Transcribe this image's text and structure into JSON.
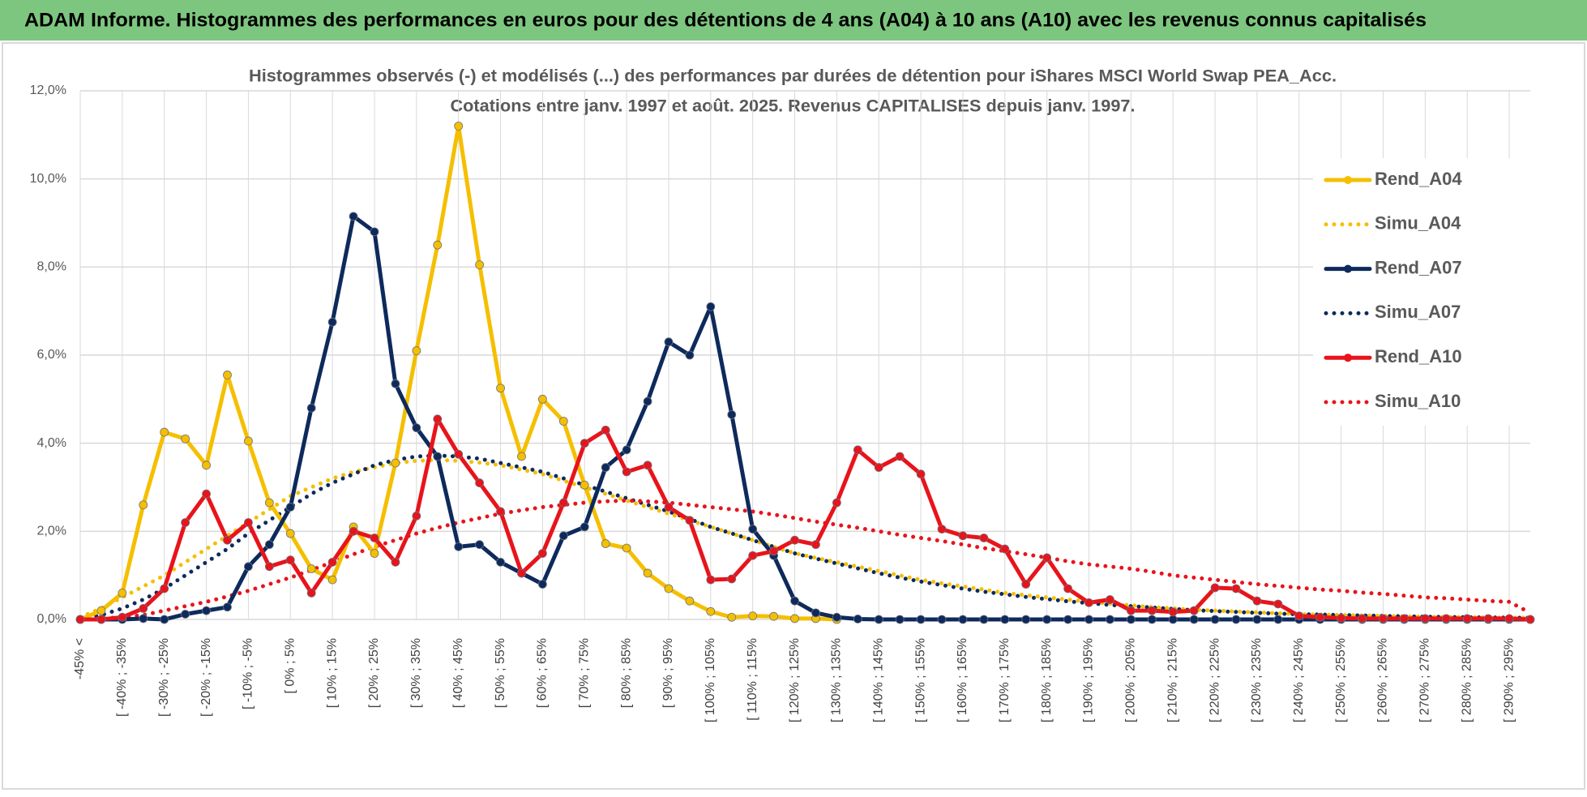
{
  "page_title": "ADAM Informe. Histogrammes des performances en euros pour des détentions de 4 ans (A04) à 10 ans (A10) avec les revenus connus capitalisés",
  "chart_data": {
    "type": "line",
    "title": "Histogrammes observés (-) et modélisés (...) des performances par durées de détention pour iShares MSCI World Swap PEA_Acc.",
    "subtitle": "Cotations entre janv. 1997 et août. 2025. Revenus CAPITALISES depuis janv. 1997.",
    "categories": [
      "-45% <",
      null,
      "[ -40% ; -35%",
      null,
      "[ -30% ; -25%",
      null,
      "[ -20% ; -15%",
      null,
      "[ -10% ; -5%",
      null,
      "[ 0% ; 5%",
      null,
      "[ 10% ; 15%",
      null,
      "[ 20% ; 25%",
      null,
      "[ 30% ; 35%",
      null,
      "[ 40% ; 45%",
      null,
      "[ 50% ; 55%",
      null,
      "[ 60% ; 65%",
      null,
      "[ 70% ; 75%",
      null,
      "[ 80% ; 85%",
      null,
      "[ 90% ; 95%",
      null,
      "[ 100% ; 105%",
      null,
      "[ 110% ; 115%",
      null,
      "[ 120% ; 125%",
      null,
      "[ 130% ; 135%",
      null,
      "[ 140% ; 145%",
      null,
      "[ 150% ; 155%",
      null,
      "[ 160% ; 165%",
      null,
      "[ 170% ; 175%",
      null,
      "[ 180% ; 185%",
      null,
      "[ 190% ; 195%",
      null,
      "[ 200% ; 205%",
      null,
      "[ 210% ; 215%",
      null,
      "[ 220% ; 225%",
      null,
      "[ 230% ; 235%",
      null,
      "[ 240% ; 245%",
      null,
      "[ 250% ; 255%",
      null,
      "[ 260% ; 265%",
      null,
      "[ 270% ; 275%",
      null,
      "[ 280% ; 285%",
      null,
      "[ 290% ; 295%",
      null
    ],
    "series": [
      {
        "name": "Rend_A04",
        "color": "#f5bf00",
        "style": "solid",
        "markers": true,
        "values": [
          0,
          0.2,
          0.6,
          2.6,
          4.25,
          4.1,
          3.5,
          5.55,
          4.05,
          2.65,
          1.95,
          1.15,
          0.9,
          2.1,
          1.5,
          3.55,
          6.1,
          8.5,
          11.2,
          8.05,
          5.25,
          3.7,
          5.0,
          4.5,
          3.05,
          1.72,
          1.62,
          1.05,
          0.7,
          0.42,
          0.18,
          0.05,
          0.08,
          0.07,
          0.02,
          0.02,
          0,
          null,
          null,
          null,
          null,
          null,
          null,
          null,
          null,
          null,
          null,
          null,
          null,
          null,
          null,
          null,
          null,
          null,
          null,
          null,
          null,
          null,
          null,
          null,
          null,
          null,
          null,
          null,
          null,
          null,
          null,
          null,
          null,
          null
        ]
      },
      {
        "name": "Simu_A04",
        "color": "#f5bf00",
        "style": "dotted",
        "markers": false,
        "values": [
          0.05,
          0.25,
          0.5,
          0.75,
          1.0,
          1.3,
          1.6,
          1.9,
          2.2,
          2.5,
          2.8,
          3.0,
          3.2,
          3.35,
          3.45,
          3.55,
          3.6,
          3.62,
          3.6,
          3.56,
          3.5,
          3.4,
          3.3,
          3.15,
          3.0,
          2.85,
          2.7,
          2.55,
          2.4,
          2.25,
          2.1,
          1.95,
          1.8,
          1.65,
          1.5,
          1.4,
          1.3,
          1.2,
          1.1,
          1.0,
          0.9,
          0.82,
          0.75,
          0.68,
          0.6,
          0.55,
          0.5,
          0.45,
          0.4,
          0.36,
          0.32,
          0.28,
          0.25,
          0.22,
          0.2,
          0.18,
          0.16,
          0.14,
          0.12,
          0.11,
          0.1,
          0.09,
          0.08,
          0.07,
          0.06,
          0.055,
          0.05,
          0.045,
          0.04,
          0.035
        ]
      },
      {
        "name": "Rend_A07",
        "color": "#0e2a5c",
        "style": "solid",
        "markers": true,
        "values": [
          0,
          0,
          0,
          0.02,
          0,
          0.12,
          0.2,
          0.28,
          1.2,
          1.7,
          2.55,
          4.8,
          6.75,
          9.15,
          8.8,
          5.35,
          4.35,
          3.7,
          1.65,
          1.7,
          1.3,
          1.05,
          0.8,
          1.9,
          2.1,
          3.45,
          3.85,
          4.95,
          6.3,
          6.0,
          7.1,
          4.65,
          2.05,
          1.45,
          0.42,
          0.15,
          0.05,
          0.01,
          0,
          0,
          0,
          0,
          0,
          0,
          0,
          0,
          0,
          0,
          0,
          0,
          0,
          0,
          0,
          0,
          0,
          0,
          0,
          0,
          0,
          0,
          0,
          0,
          0,
          0,
          0,
          0,
          0,
          0,
          0,
          0
        ]
      },
      {
        "name": "Simu_A07",
        "color": "#0e2a5c",
        "style": "dotted",
        "markers": false,
        "values": [
          0.02,
          0.1,
          0.25,
          0.45,
          0.7,
          1.0,
          1.3,
          1.6,
          1.95,
          2.25,
          2.55,
          2.85,
          3.1,
          3.3,
          3.5,
          3.62,
          3.7,
          3.72,
          3.7,
          3.65,
          3.55,
          3.45,
          3.35,
          3.2,
          3.05,
          2.9,
          2.75,
          2.6,
          2.45,
          2.28,
          2.1,
          1.95,
          1.8,
          1.65,
          1.5,
          1.38,
          1.27,
          1.16,
          1.05,
          0.95,
          0.86,
          0.78,
          0.7,
          0.63,
          0.57,
          0.51,
          0.46,
          0.41,
          0.37,
          0.33,
          0.3,
          0.27,
          0.24,
          0.21,
          0.19,
          0.17,
          0.15,
          0.13,
          0.12,
          0.11,
          0.1,
          0.09,
          0.08,
          0.07,
          0.06,
          0.055,
          0.05,
          0.045,
          0.04,
          0.035
        ]
      },
      {
        "name": "Rend_A10",
        "color": "#e8141b",
        "style": "solid",
        "markers": true,
        "values": [
          0,
          0,
          0.05,
          0.25,
          0.7,
          2.2,
          2.85,
          1.8,
          2.2,
          1.2,
          1.35,
          0.6,
          1.3,
          2.0,
          1.85,
          1.3,
          2.35,
          4.55,
          3.75,
          3.1,
          2.45,
          1.05,
          1.5,
          2.65,
          4.0,
          4.3,
          3.35,
          3.5,
          2.55,
          2.25,
          0.9,
          0.92,
          1.45,
          1.55,
          1.8,
          1.7,
          2.65,
          3.85,
          3.45,
          3.7,
          3.3,
          2.05,
          1.9,
          1.85,
          1.6,
          0.8,
          1.4,
          0.7,
          0.38,
          0.45,
          0.2,
          0.2,
          0.17,
          0.2,
          0.72,
          0.7,
          0.42,
          0.35,
          0.08,
          0.05,
          0.03,
          0.02,
          0.02,
          0.02,
          0.02,
          0.02,
          0.02,
          0.02,
          0.02,
          0
        ]
      },
      {
        "name": "Simu_A10",
        "color": "#e8141b",
        "style": "dotted",
        "markers": false,
        "values": [
          0,
          0.02,
          0.05,
          0.1,
          0.2,
          0.3,
          0.4,
          0.52,
          0.65,
          0.8,
          0.95,
          1.12,
          1.3,
          1.48,
          1.65,
          1.8,
          1.95,
          2.08,
          2.2,
          2.3,
          2.4,
          2.48,
          2.55,
          2.6,
          2.65,
          2.68,
          2.7,
          2.68,
          2.65,
          2.6,
          2.55,
          2.5,
          2.45,
          2.38,
          2.3,
          2.22,
          2.15,
          2.08,
          2.0,
          1.92,
          1.85,
          1.78,
          1.7,
          1.62,
          1.55,
          1.48,
          1.4,
          1.32,
          1.25,
          1.2,
          1.15,
          1.08,
          1.0,
          0.95,
          0.9,
          0.85,
          0.8,
          0.76,
          0.72,
          0.68,
          0.65,
          0.61,
          0.58,
          0.54,
          0.5,
          0.48,
          0.45,
          0.42,
          0.4,
          0.15
        ]
      }
    ],
    "ylim": [
      0,
      12
    ],
    "yticks": [
      {
        "value": 0,
        "label": "0,0%"
      },
      {
        "value": 2,
        "label": "2,0%"
      },
      {
        "value": 4,
        "label": "4,0%"
      },
      {
        "value": 6,
        "label": "6,0%"
      },
      {
        "value": 8,
        "label": "8,0%"
      },
      {
        "value": 10,
        "label": "10,0%"
      },
      {
        "value": 12,
        "label": "12,0%"
      }
    ],
    "grid": true,
    "legend": "right"
  }
}
